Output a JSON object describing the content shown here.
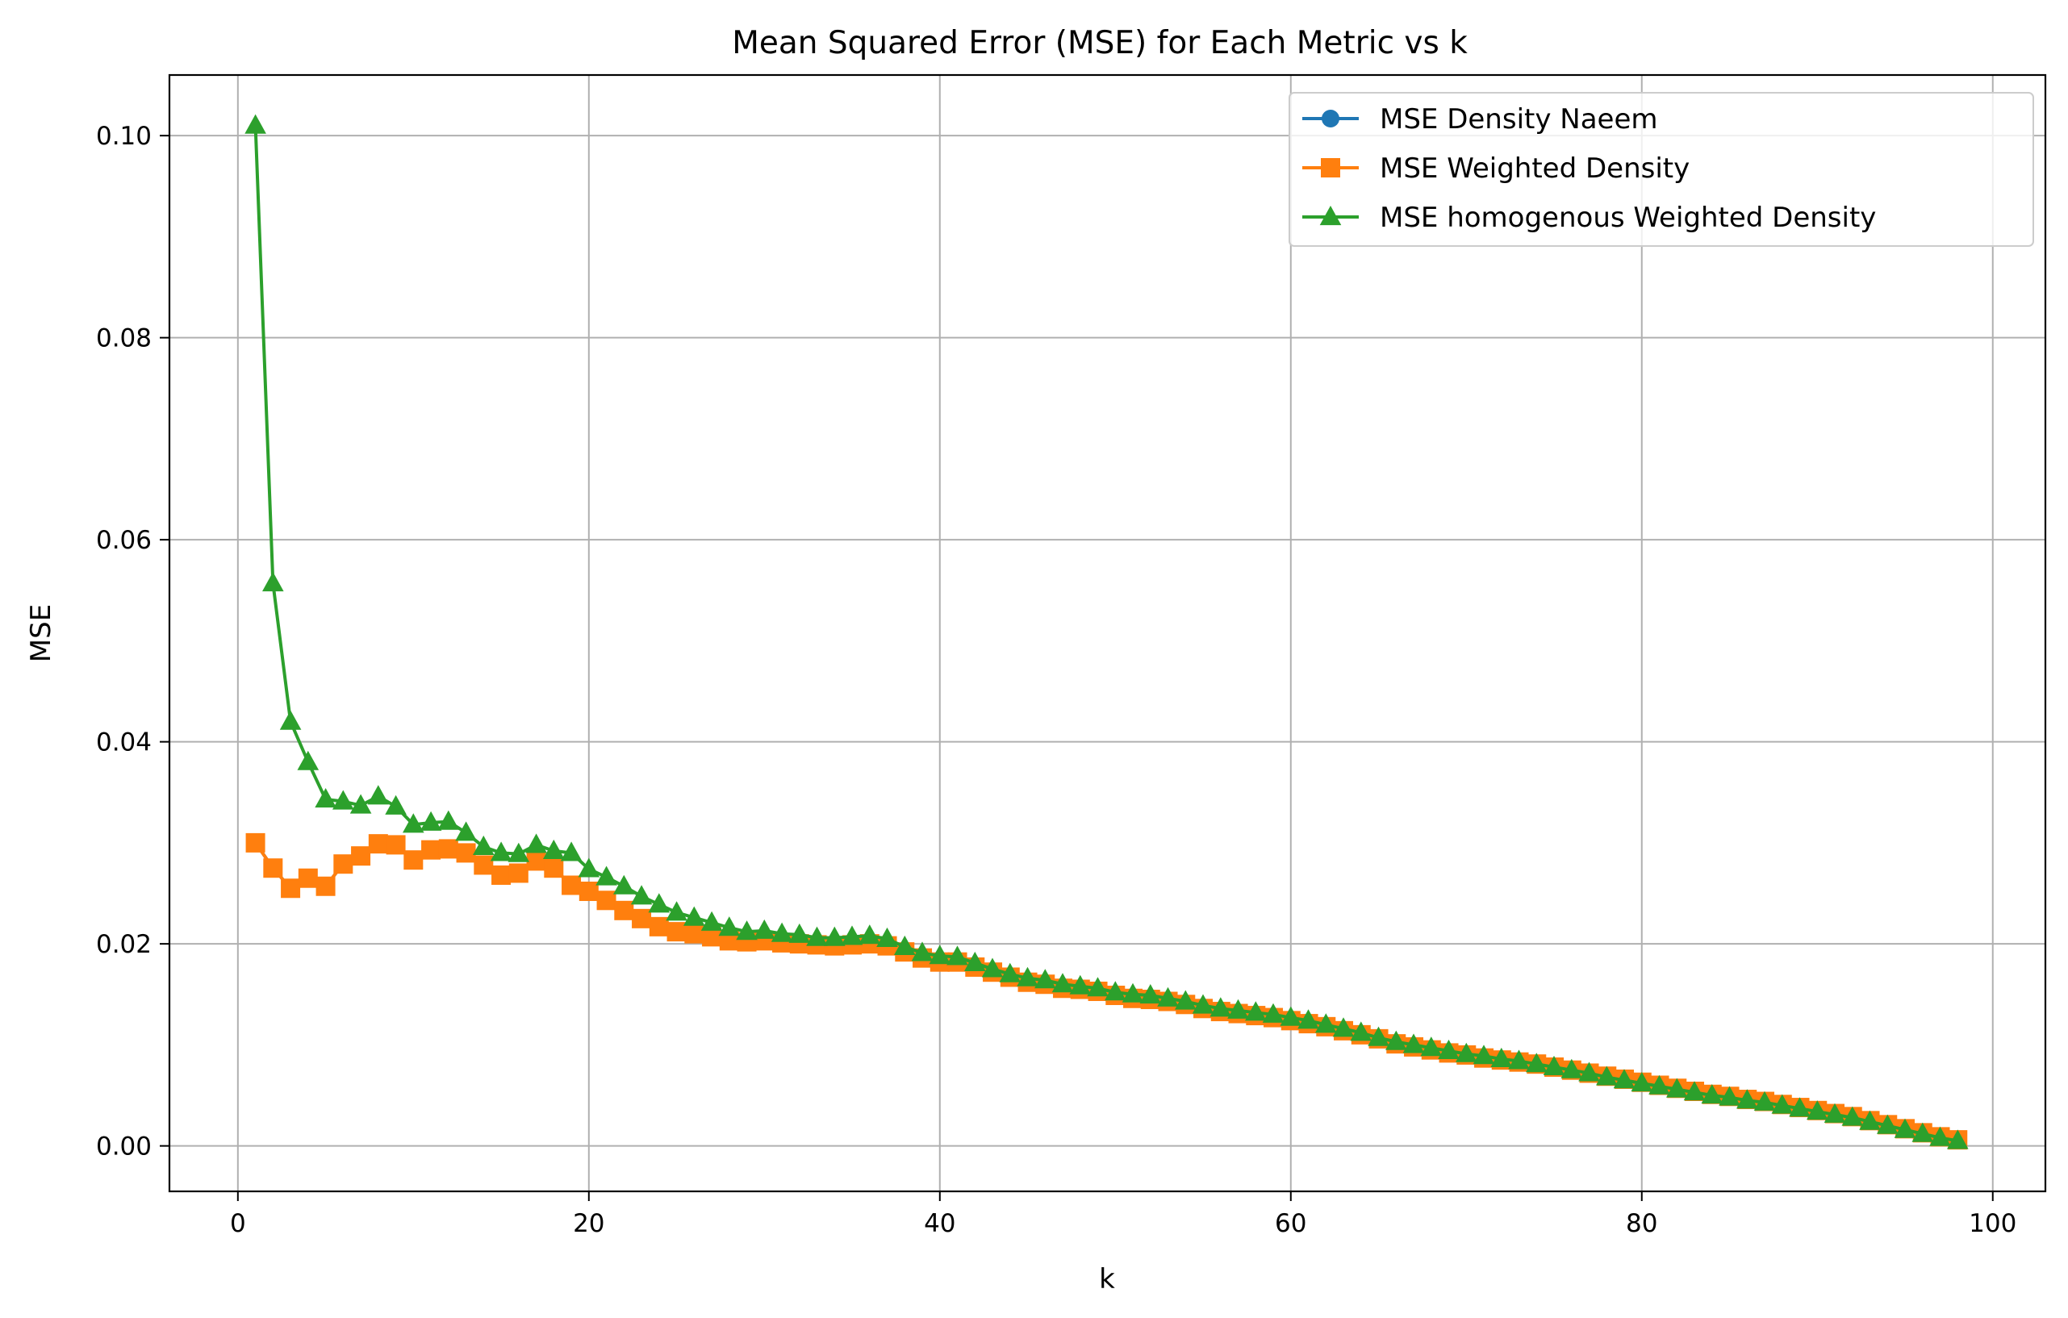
{
  "chart_data": {
    "type": "line",
    "title": "Mean Squared Error (MSE) for Each Metric vs k",
    "xlabel": "k",
    "ylabel": "MSE",
    "xlim": [
      -3.9,
      103.0
    ],
    "ylim": [
      -0.0045,
      0.106
    ],
    "xticks": [
      0,
      20,
      40,
      60,
      80,
      100
    ],
    "yticks": [
      0.0,
      0.02,
      0.04,
      0.06,
      0.08,
      0.1
    ],
    "xtick_labels": [
      "0",
      "20",
      "40",
      "60",
      "80",
      "100"
    ],
    "ytick_labels": [
      "0.00",
      "0.02",
      "0.04",
      "0.06",
      "0.08",
      "0.10"
    ],
    "grid": true,
    "legend_position": "upper-right",
    "x": [
      1,
      2,
      3,
      4,
      5,
      6,
      7,
      8,
      9,
      10,
      11,
      12,
      13,
      14,
      15,
      16,
      17,
      18,
      19,
      20,
      21,
      22,
      23,
      24,
      25,
      26,
      27,
      28,
      29,
      30,
      31,
      32,
      33,
      34,
      35,
      36,
      37,
      38,
      39,
      40,
      41,
      42,
      43,
      44,
      45,
      46,
      47,
      48,
      49,
      50,
      51,
      52,
      53,
      54,
      55,
      56,
      57,
      58,
      59,
      60,
      61,
      62,
      63,
      64,
      65,
      66,
      67,
      68,
      69,
      70,
      71,
      72,
      73,
      74,
      75,
      76,
      77,
      78,
      79,
      80,
      81,
      82,
      83,
      84,
      85,
      86,
      87,
      88,
      89,
      90,
      91,
      92,
      93,
      94,
      95,
      96,
      97,
      98
    ],
    "series": [
      {
        "name": "MSE Density Naeem",
        "color": "#1f77b4",
        "marker": "circle",
        "values": [
          0.03,
          0.0275,
          0.0255,
          0.0265,
          0.0257,
          0.0279,
          0.0287,
          0.0299,
          0.0298,
          0.0283,
          0.0293,
          0.0294,
          0.029,
          0.0278,
          0.0268,
          0.027,
          0.0282,
          0.0275,
          0.0258,
          0.0252,
          0.0243,
          0.0233,
          0.0225,
          0.0217,
          0.0212,
          0.021,
          0.0207,
          0.0203,
          0.0202,
          0.0203,
          0.0201,
          0.02,
          0.0199,
          0.0198,
          0.0199,
          0.02,
          0.0198,
          0.0192,
          0.0186,
          0.0182,
          0.0182,
          0.0177,
          0.0172,
          0.0167,
          0.0162,
          0.016,
          0.0156,
          0.0155,
          0.0153,
          0.0149,
          0.0146,
          0.0145,
          0.0143,
          0.014,
          0.0136,
          0.0133,
          0.0131,
          0.0129,
          0.0127,
          0.0124,
          0.0121,
          0.0118,
          0.0114,
          0.011,
          0.0106,
          0.0101,
          0.0098,
          0.0095,
          0.0092,
          0.009,
          0.0087,
          0.0085,
          0.0083,
          0.0081,
          0.0078,
          0.0075,
          0.0072,
          0.0069,
          0.0066,
          0.0063,
          0.006,
          0.0057,
          0.0054,
          0.0051,
          0.0049,
          0.0046,
          0.0044,
          0.0041,
          0.0038,
          0.0035,
          0.0032,
          0.0029,
          0.0025,
          0.0021,
          0.0017,
          0.0013,
          0.0009,
          0.0006
        ]
      },
      {
        "name": "MSE Weighted Density",
        "color": "#ff7f0e",
        "marker": "square",
        "values": [
          0.03,
          0.0275,
          0.0255,
          0.0265,
          0.0257,
          0.0279,
          0.0287,
          0.0299,
          0.0298,
          0.0283,
          0.0293,
          0.0294,
          0.029,
          0.0278,
          0.0268,
          0.027,
          0.0282,
          0.0275,
          0.0258,
          0.0252,
          0.0243,
          0.0233,
          0.0225,
          0.0217,
          0.0212,
          0.021,
          0.0207,
          0.0203,
          0.0202,
          0.0203,
          0.0201,
          0.02,
          0.0199,
          0.0198,
          0.0199,
          0.02,
          0.0198,
          0.0192,
          0.0186,
          0.0182,
          0.0182,
          0.0177,
          0.0172,
          0.0167,
          0.0162,
          0.016,
          0.0156,
          0.0155,
          0.0153,
          0.0149,
          0.0146,
          0.0145,
          0.0143,
          0.014,
          0.0136,
          0.0133,
          0.0131,
          0.0129,
          0.0127,
          0.0124,
          0.0121,
          0.0118,
          0.0114,
          0.011,
          0.0106,
          0.0101,
          0.0098,
          0.0095,
          0.0092,
          0.009,
          0.0087,
          0.0085,
          0.0083,
          0.0081,
          0.0078,
          0.0075,
          0.0072,
          0.0069,
          0.0066,
          0.0063,
          0.006,
          0.0057,
          0.0054,
          0.0051,
          0.0049,
          0.0046,
          0.0044,
          0.0041,
          0.0038,
          0.0035,
          0.0032,
          0.0029,
          0.0025,
          0.0021,
          0.0017,
          0.0013,
          0.0009,
          0.0006
        ]
      },
      {
        "name": "MSE homogenous Weighted Density",
        "color": "#2ca02c",
        "marker": "triangle",
        "values": [
          0.101,
          0.0557,
          0.042,
          0.038,
          0.0343,
          0.0341,
          0.0337,
          0.0346,
          0.0336,
          0.0318,
          0.032,
          0.0321,
          0.031,
          0.0296,
          0.029,
          0.0289,
          0.0298,
          0.0292,
          0.029,
          0.0274,
          0.0266,
          0.0257,
          0.0247,
          0.0239,
          0.0231,
          0.0226,
          0.0221,
          0.0216,
          0.0212,
          0.0213,
          0.021,
          0.0209,
          0.0206,
          0.0206,
          0.0207,
          0.0208,
          0.0205,
          0.0197,
          0.0191,
          0.0188,
          0.0187,
          0.0181,
          0.0175,
          0.017,
          0.0166,
          0.0164,
          0.016,
          0.0158,
          0.0156,
          0.0152,
          0.015,
          0.0149,
          0.0146,
          0.0143,
          0.0139,
          0.0136,
          0.0134,
          0.0132,
          0.013,
          0.0127,
          0.0124,
          0.012,
          0.0116,
          0.0112,
          0.0107,
          0.0103,
          0.01,
          0.0097,
          0.0094,
          0.0091,
          0.0089,
          0.0086,
          0.0084,
          0.0081,
          0.0078,
          0.0075,
          0.0072,
          0.0068,
          0.0065,
          0.0062,
          0.0059,
          0.0056,
          0.0053,
          0.005,
          0.0048,
          0.0045,
          0.0043,
          0.004,
          0.0037,
          0.0034,
          0.0031,
          0.0028,
          0.0024,
          0.002,
          0.0016,
          0.0012,
          0.0008,
          0.0005
        ]
      }
    ]
  }
}
